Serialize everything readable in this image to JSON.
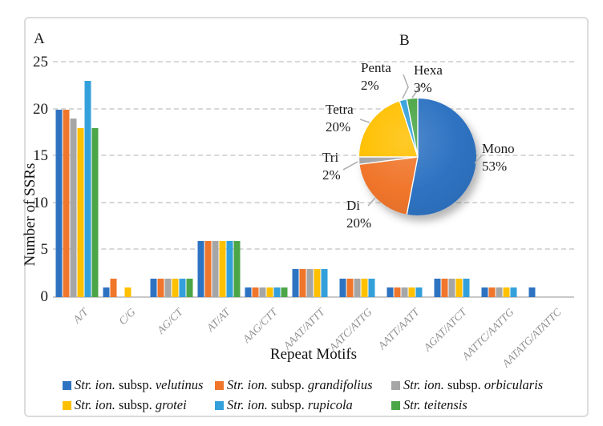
{
  "panels": {
    "a_label": "A",
    "b_label": "B"
  },
  "colors": {
    "blue": "#2E73C2",
    "orange": "#F0762B",
    "gray": "#A6A6A6",
    "yellow": "#FFC000",
    "lightblue": "#33A0DB",
    "green": "#4CA647",
    "gridline": "#d8d8d8",
    "leader": "#b3b3b3",
    "axis_text": "#1a1a1a",
    "category_text": "#8f8f8f"
  },
  "chart_data": [
    {
      "type": "bar",
      "panel": "A",
      "title": "",
      "xlabel": "Repeat Motifs",
      "ylabel": "Number of SSRs",
      "ylim": [
        0,
        25
      ],
      "yticks": [
        0,
        5,
        10,
        15,
        20,
        25
      ],
      "grid": "horizontal-dashed",
      "legend_position": "bottom",
      "categories": [
        "A/T",
        "C/G",
        "AG/CT",
        "AT/AT",
        "AAG/CTT",
        "AAAT/ATTT",
        "AATC/ATTG",
        "AATT/AATT",
        "AGAT/ATCT",
        "AATTC/AATTG",
        "AATATG/ATATTC"
      ],
      "series": [
        {
          "name": "Str. ion. subsp. velutinus",
          "color": "blue",
          "values": [
            20,
            1,
            2,
            6,
            1,
            3,
            2,
            1,
            2,
            1,
            1
          ]
        },
        {
          "name": "Str. ion. subsp. grandifolius",
          "color": "orange",
          "values": [
            20,
            2,
            2,
            6,
            1,
            3,
            2,
            1,
            2,
            1,
            0
          ]
        },
        {
          "name": "Str. ion. subsp. orbicularis",
          "color": "gray",
          "values": [
            19,
            0,
            2,
            6,
            1,
            3,
            2,
            1,
            2,
            1,
            0
          ]
        },
        {
          "name": "Str. ion. subsp. grotei",
          "color": "yellow",
          "values": [
            18,
            1,
            2,
            6,
            1,
            3,
            2,
            1,
            2,
            1,
            0
          ]
        },
        {
          "name": "Str. ion. subsp. rupicola",
          "color": "lightblue",
          "values": [
            23,
            0,
            2,
            6,
            1,
            3,
            2,
            1,
            2,
            1,
            0
          ]
        },
        {
          "name": "Str. teitensis",
          "color": "green",
          "values": [
            18,
            0,
            2,
            6,
            1,
            0,
            0,
            0,
            0,
            0,
            0
          ]
        }
      ]
    },
    {
      "type": "pie",
      "panel": "B",
      "start_angle": "top",
      "direction": "clockwise",
      "slices": [
        {
          "label": "Mono",
          "pct": 53,
          "color": "blue"
        },
        {
          "label": "Di",
          "pct": 20,
          "color": "orange"
        },
        {
          "label": "Tri",
          "pct": 2,
          "color": "gray"
        },
        {
          "label": "Tetra",
          "pct": 20,
          "color": "yellow"
        },
        {
          "label": "Penta",
          "pct": 2,
          "color": "lightblue"
        },
        {
          "label": "Hexa",
          "pct": 3,
          "color": "green"
        }
      ]
    }
  ],
  "legend": {
    "items": [
      {
        "color": "blue",
        "segments": [
          {
            "text": "Str. ion.",
            "italic": true
          },
          {
            "text": " subsp. ",
            "italic": false
          },
          {
            "text": "velutinus",
            "italic": true
          }
        ]
      },
      {
        "color": "orange",
        "segments": [
          {
            "text": "Str. ion.",
            "italic": true
          },
          {
            "text": " subsp. ",
            "italic": false
          },
          {
            "text": "grandifolius",
            "italic": true
          }
        ]
      },
      {
        "color": "gray",
        "segments": [
          {
            "text": "Str. ion.",
            "italic": true
          },
          {
            "text": " subsp. ",
            "italic": false
          },
          {
            "text": "orbicularis",
            "italic": true
          }
        ]
      },
      {
        "color": "yellow",
        "segments": [
          {
            "text": "Str. ion.",
            "italic": true
          },
          {
            "text": " subsp. ",
            "italic": false
          },
          {
            "text": "grotei",
            "italic": true
          }
        ]
      },
      {
        "color": "lightblue",
        "segments": [
          {
            "text": "Str. ion.",
            "italic": true
          },
          {
            "text": " subsp. ",
            "italic": false
          },
          {
            "text": "rupicola",
            "italic": true
          }
        ]
      },
      {
        "color": "green",
        "segments": [
          {
            "text": "Str.",
            "italic": true
          },
          {
            "text": " ",
            "italic": false
          },
          {
            "text": "teitensis",
            "italic": true
          }
        ]
      }
    ]
  }
}
